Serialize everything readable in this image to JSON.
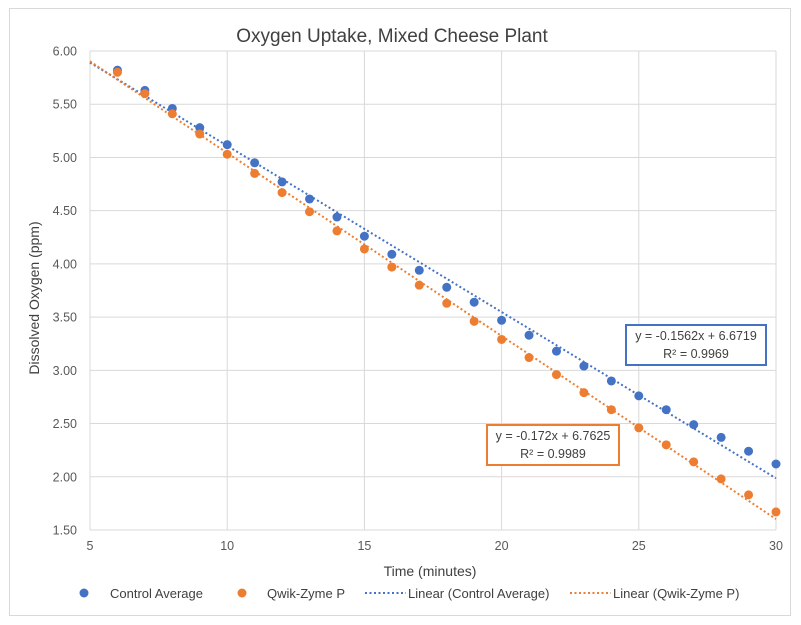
{
  "colors": {
    "control": "#4472c4",
    "qwik": "#ed7d31",
    "grid": "#d9d9d9"
  },
  "chart_data": {
    "type": "scatter",
    "title": "Oxygen Uptake, Mixed Cheese Plant",
    "xlabel": "Time (minutes)",
    "ylabel": "Dissolved Oxygen (ppm)",
    "xlim": [
      5,
      30
    ],
    "ylim": [
      1.5,
      6.0
    ],
    "x_ticks": [
      "5",
      "10",
      "15",
      "20",
      "25",
      "30"
    ],
    "y_ticks": [
      "1.50",
      "2.00",
      "2.50",
      "3.00",
      "3.50",
      "4.00",
      "4.50",
      "5.00",
      "5.50",
      "6.00"
    ],
    "grid": true,
    "legend_position": "bottom",
    "series": [
      {
        "name": "Control Average",
        "x": [
          6,
          7,
          8,
          9,
          10,
          11,
          12,
          13,
          14,
          15,
          16,
          17,
          18,
          19,
          20,
          21,
          22,
          23,
          24,
          25,
          26,
          27,
          28,
          29,
          30
        ],
        "values": [
          5.82,
          5.63,
          5.46,
          5.28,
          5.12,
          4.95,
          4.77,
          4.61,
          4.44,
          4.26,
          4.09,
          3.94,
          3.78,
          3.64,
          3.47,
          3.33,
          3.18,
          3.04,
          2.9,
          2.76,
          2.63,
          2.49,
          2.37,
          2.24,
          2.12
        ]
      },
      {
        "name": "Qwik-Zyme P",
        "x": [
          6,
          7,
          8,
          9,
          10,
          11,
          12,
          13,
          14,
          15,
          16,
          17,
          18,
          19,
          20,
          21,
          22,
          23,
          24,
          25,
          26,
          27,
          28,
          29,
          30
        ],
        "values": [
          5.8,
          5.6,
          5.41,
          5.22,
          5.03,
          4.85,
          4.67,
          4.49,
          4.31,
          4.14,
          3.97,
          3.8,
          3.63,
          3.46,
          3.29,
          3.12,
          2.96,
          2.79,
          2.63,
          2.46,
          2.3,
          2.14,
          1.98,
          1.83,
          1.67
        ]
      }
    ],
    "trendlines": [
      {
        "name": "Linear (Control Average)",
        "slope": -0.1562,
        "intercept": 6.6719,
        "equation": "y = -0.1562x + 6.6719",
        "r2": "R² = 0.9969"
      },
      {
        "name": "Linear (Qwik-Zyme P)",
        "slope": -0.172,
        "intercept": 6.7625,
        "equation": "y = -0.172x + 6.7625",
        "r2": "R² = 0.9989"
      }
    ]
  }
}
